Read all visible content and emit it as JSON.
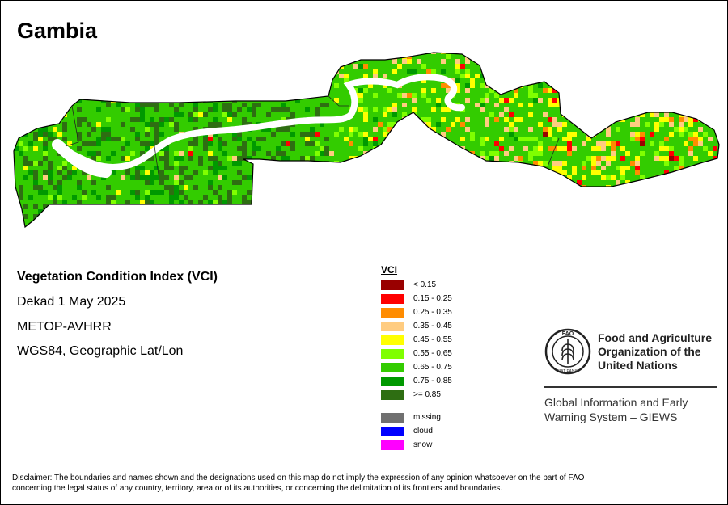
{
  "map": {
    "title": "Gambia",
    "info": {
      "title": "Vegetation Condition Index (VCI)",
      "dekad": "Dekad 1 May 2025",
      "sensor": "METOP-AVHRR",
      "projection": "WGS84, Geographic Lat/Lon"
    }
  },
  "legend": {
    "title": "VCI",
    "classes": [
      {
        "label": "< 0.15",
        "color": "#990000"
      },
      {
        "label": "0.15 - 0.25",
        "color": "#ff0000"
      },
      {
        "label": "0.25 - 0.35",
        "color": "#ff8c00"
      },
      {
        "label": "0.35 - 0.45",
        "color": "#ffcc80"
      },
      {
        "label": "0.45 - 0.55",
        "color": "#ffff00"
      },
      {
        "label": "0.55 - 0.65",
        "color": "#80ff00"
      },
      {
        "label": "0.65 - 0.75",
        "color": "#33cc00"
      },
      {
        "label": "0.75 - 0.85",
        "color": "#009900"
      },
      {
        "label": ">= 0.85",
        "color": "#2e6e12"
      }
    ],
    "other": [
      {
        "label": "missing",
        "color": "#707070"
      },
      {
        "label": "cloud",
        "color": "#0000ff"
      },
      {
        "label": "snow",
        "color": "#ff00ff"
      }
    ]
  },
  "logo": {
    "org_line1": "Food and Agriculture",
    "org_line2": "Organization of the",
    "org_line3": "United Nations",
    "emblem_text": "FAO",
    "emblem_motto": "FIAT PANIS",
    "giews_line1": "Global Information and Early",
    "giews_line2": "Warning System – GIEWS"
  },
  "disclaimer": {
    "line1": "Disclaimer: The boundaries and names shown and the designations used on this map do not imply the expression of any opinion whatsoever on the part of FAO",
    "line2": "concerning the legal status of any country, territory, area or of its authorities, or concerning the delimitation of its frontiers and boundaries."
  }
}
